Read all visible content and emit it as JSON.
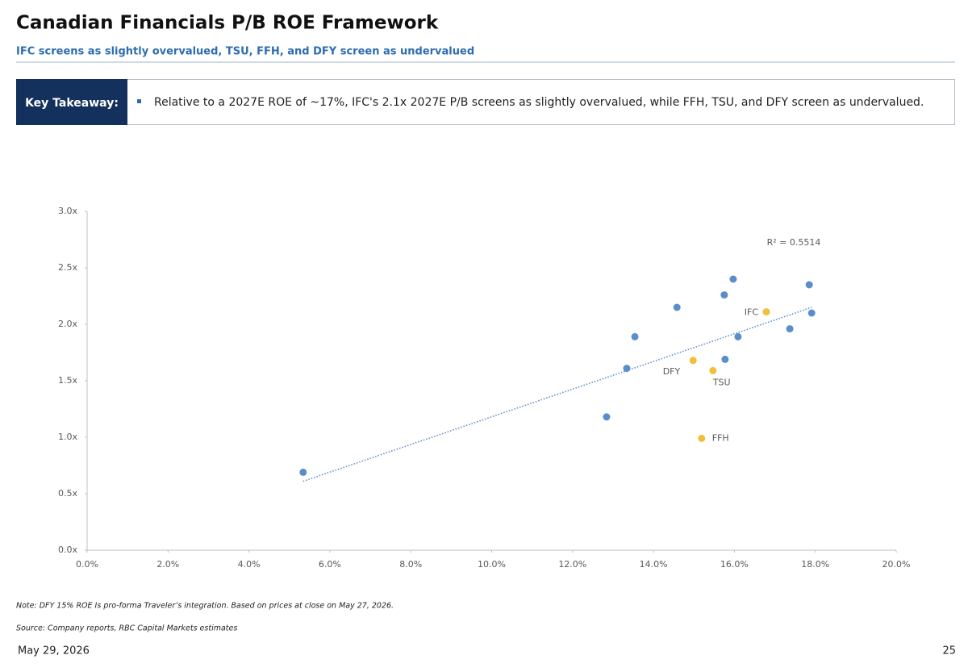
{
  "header": {
    "title": "Canadian Financials P/B ROE Framework",
    "subtitle": "IFC screens as slightly overvalued, TSU, FFH, and DFY screen as undervalued"
  },
  "takeaway": {
    "label": "Key Takeaway:",
    "text": "Relative to a 2027E ROE of ~17%, IFC's 2.1x 2027E P/B screens as slightly overvalued, while FFH, TSU, and DFY screen as undervalued."
  },
  "chart_data": {
    "type": "scatter",
    "xlim": [
      0,
      20
    ],
    "xticks": [
      {
        "value": 0,
        "label": "0.0%"
      },
      {
        "value": 2,
        "label": "2.0%"
      },
      {
        "value": 4,
        "label": "4.0%"
      },
      {
        "value": 6,
        "label": "6.0%"
      },
      {
        "value": 8,
        "label": "8.0%"
      },
      {
        "value": 10,
        "label": "10.0%"
      },
      {
        "value": 12,
        "label": "12.0%"
      },
      {
        "value": 14,
        "label": "14.0%"
      },
      {
        "value": 16,
        "label": "16.0%"
      },
      {
        "value": 18,
        "label": "18.0%"
      },
      {
        "value": 20,
        "label": "20.0%"
      }
    ],
    "ylim": [
      0,
      3
    ],
    "yticks": [
      {
        "value": 0,
        "label": "0.0x"
      },
      {
        "value": 0.5,
        "label": "0.5x"
      },
      {
        "value": 1,
        "label": "1.0x"
      },
      {
        "value": 1.5,
        "label": "1.5x"
      },
      {
        "value": 2,
        "label": "2.0x"
      },
      {
        "value": 2.5,
        "label": "2.5x"
      },
      {
        "value": 3,
        "label": "3.0x"
      }
    ],
    "series": [
      {
        "color": "#5b8ec9",
        "x": [
          5.34,
          12.84,
          13.34,
          13.54,
          14.58,
          15.75,
          15.97,
          15.77,
          16.09,
          17.37,
          17.85,
          17.91
        ],
        "values": [
          0.69,
          1.18,
          1.61,
          1.89,
          2.15,
          2.26,
          2.4,
          1.69,
          1.89,
          1.96,
          2.35,
          2.1
        ]
      },
      {
        "color": "#f2bf3a",
        "x": [
          16.79,
          14.98,
          15.47,
          15.19
        ],
        "values": [
          2.11,
          1.68,
          1.59,
          0.99
        ],
        "labels": [
          "IFC",
          "DFY",
          "TSU",
          "FFH"
        ]
      }
    ],
    "trendline": {
      "color": "#5b8ec9",
      "x": [
        5.34,
        17.91
      ],
      "values": [
        0.61,
        2.15
      ]
    },
    "annotation": "R² = 0.5514"
  },
  "footer": {
    "note": "Note:  DFY 15% ROE Is pro-forma Traveler’s integration. Based on prices at close on May 27, 2026.",
    "source": "Source: Company reports, RBC Capital Markets estimates",
    "date": "May 29, 2026",
    "page": "25"
  }
}
